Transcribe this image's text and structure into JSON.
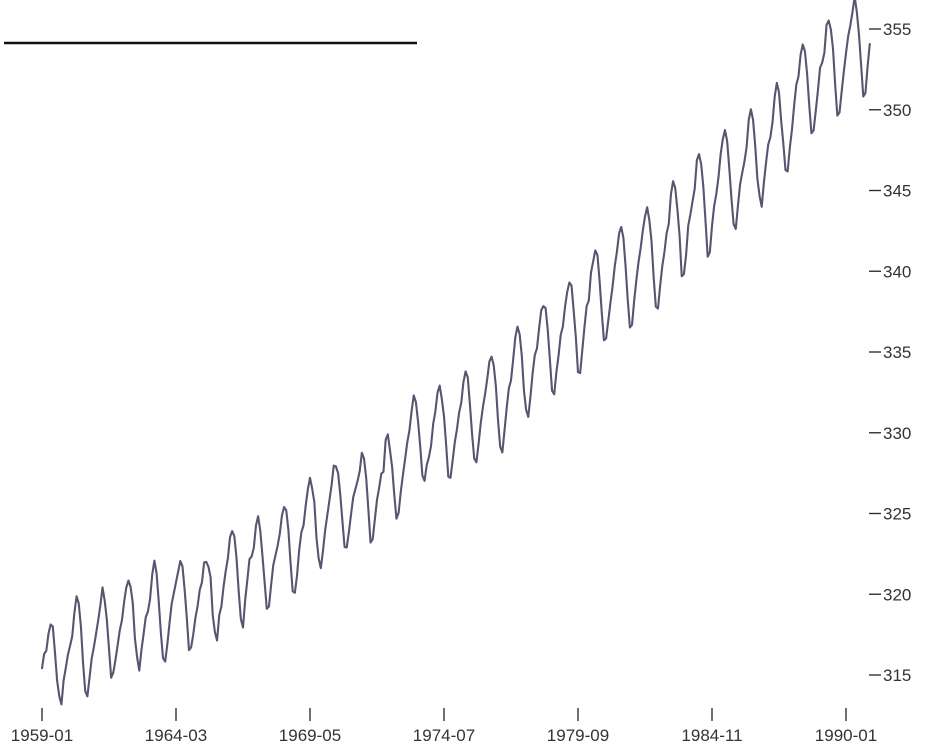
{
  "colors": {
    "series": "#5a5470",
    "axis": "#333333",
    "header_rule": "#111111",
    "background": "#ffffff"
  },
  "chart_data": {
    "type": "line",
    "title": "",
    "xlabel": "",
    "ylabel": "",
    "x_start": "1959-01",
    "x_end": "1990-12",
    "x_range": [
      "1959-01",
      "1990-12"
    ],
    "xlim": [
      "1958-10",
      "1991-12"
    ],
    "ylim": [
      313.0,
      356.8
    ],
    "grid": false,
    "legend": "none",
    "x_ticks": [
      "1959-01",
      "1964-03",
      "1969-05",
      "1974-07",
      "1979-09",
      "1984-11",
      "1990-01"
    ],
    "y_ticks": [
      315,
      320,
      325,
      330,
      335,
      340,
      345,
      350,
      355
    ],
    "y_tick_labels": [
      "315",
      "320",
      "325",
      "330",
      "335",
      "340",
      "345",
      "350",
      "355"
    ],
    "series": [
      {
        "values": [
          315.42,
          316.31,
          316.5,
          317.56,
          318.13,
          318.0,
          316.39,
          314.65,
          313.68,
          313.18,
          314.66,
          315.43,
          316.27,
          316.81,
          317.42,
          318.87,
          319.87,
          319.43,
          318.01,
          315.74,
          314.0,
          313.68,
          314.84,
          316.03,
          316.73,
          317.54,
          318.38,
          319.31,
          320.42,
          319.61,
          318.42,
          316.63,
          314.83,
          315.16,
          315.94,
          316.85,
          317.78,
          318.4,
          319.53,
          320.42,
          320.85,
          320.45,
          319.45,
          317.25,
          316.11,
          315.27,
          316.53,
          317.53,
          318.58,
          318.92,
          319.7,
          321.22,
          322.08,
          321.31,
          319.58,
          317.61,
          316.05,
          315.83,
          316.91,
          318.2,
          319.41,
          320.07,
          320.74,
          321.4,
          322.06,
          321.73,
          320.27,
          318.54,
          316.54,
          316.71,
          317.53,
          318.55,
          319.27,
          320.28,
          320.73,
          321.97,
          322.0,
          321.71,
          321.05,
          318.71,
          317.66,
          317.14,
          318.7,
          319.25,
          320.46,
          321.43,
          322.23,
          323.54,
          323.91,
          323.59,
          322.24,
          320.2,
          318.48,
          317.94,
          319.63,
          320.87,
          322.17,
          322.34,
          322.88,
          324.25,
          324.83,
          323.93,
          322.38,
          320.76,
          319.1,
          319.24,
          320.56,
          321.8,
          322.4,
          322.99,
          323.73,
          324.86,
          325.4,
          325.2,
          323.98,
          321.95,
          320.18,
          320.09,
          321.16,
          322.74,
          323.83,
          324.26,
          325.47,
          326.5,
          327.21,
          326.54,
          325.72,
          323.5,
          322.22,
          321.62,
          322.69,
          323.95,
          324.89,
          325.82,
          326.77,
          327.97,
          327.91,
          327.5,
          326.18,
          324.53,
          322.93,
          322.9,
          323.85,
          324.96,
          326.01,
          326.51,
          327.01,
          327.62,
          328.76,
          328.4,
          327.2,
          325.27,
          323.2,
          323.4,
          324.63,
          325.85,
          326.6,
          327.47,
          327.58,
          329.56,
          329.9,
          328.92,
          327.88,
          326.16,
          324.68,
          325.04,
          326.34,
          327.39,
          328.37,
          329.4,
          330.14,
          331.33,
          332.31,
          331.9,
          330.7,
          329.15,
          327.35,
          327.02,
          327.99,
          328.48,
          329.18,
          330.55,
          331.32,
          332.48,
          332.92,
          332.08,
          331.01,
          329.23,
          327.27,
          327.21,
          328.29,
          329.41,
          330.23,
          331.25,
          331.87,
          333.14,
          333.8,
          333.43,
          331.73,
          329.9,
          328.4,
          328.17,
          329.32,
          330.59,
          331.58,
          332.39,
          333.33,
          334.41,
          334.71,
          334.17,
          332.89,
          330.77,
          329.14,
          328.78,
          330.14,
          331.52,
          332.75,
          333.24,
          334.53,
          335.9,
          336.57,
          336.1,
          334.76,
          332.59,
          331.42,
          330.98,
          332.24,
          333.68,
          334.8,
          335.22,
          336.47,
          337.59,
          337.84,
          337.72,
          336.37,
          334.51,
          332.6,
          332.38,
          333.75,
          334.78,
          336.05,
          336.59,
          337.79,
          338.71,
          339.3,
          339.12,
          337.56,
          335.92,
          333.75,
          333.7,
          335.12,
          336.56,
          337.84,
          338.19,
          339.91,
          340.6,
          341.29,
          341.0,
          339.39,
          337.43,
          335.72,
          335.84,
          336.93,
          338.04,
          339.06,
          340.3,
          341.21,
          342.33,
          342.74,
          342.08,
          340.32,
          338.26,
          336.52,
          336.68,
          338.19,
          339.44,
          340.57,
          341.44,
          342.53,
          343.39,
          343.96,
          343.18,
          341.88,
          339.65,
          337.81,
          337.69,
          339.09,
          340.32,
          341.2,
          342.35,
          342.93,
          344.77,
          345.58,
          345.14,
          343.81,
          342.21,
          339.69,
          339.82,
          340.98,
          342.82,
          343.52,
          344.33,
          345.11,
          346.88,
          347.25,
          346.62,
          345.22,
          343.11,
          340.9,
          341.18,
          342.8,
          344.04,
          344.79,
          345.82,
          347.25,
          348.17,
          348.74,
          348.07,
          346.38,
          344.51,
          342.92,
          342.62,
          344.06,
          345.38,
          346.11,
          346.78,
          347.68,
          349.37,
          350.03,
          349.37,
          347.76,
          345.73,
          344.68,
          343.99,
          345.48,
          346.72,
          347.84,
          348.29,
          349.23,
          350.8,
          351.66,
          351.07,
          349.33,
          347.92,
          346.27,
          346.18,
          347.64,
          348.78,
          350.25,
          351.54,
          352.05,
          353.41,
          354.04,
          353.62,
          352.22,
          350.27,
          348.55,
          348.72,
          349.91,
          351.18,
          352.6,
          352.92,
          353.53,
          355.26,
          355.52,
          354.97,
          353.75,
          351.52,
          349.64,
          349.83,
          351.14,
          352.37,
          353.5,
          354.55,
          355.23,
          356.04,
          357.0,
          356.07,
          354.67,
          352.76,
          350.82,
          351.04,
          352.69,
          354.07
        ]
      }
    ]
  }
}
